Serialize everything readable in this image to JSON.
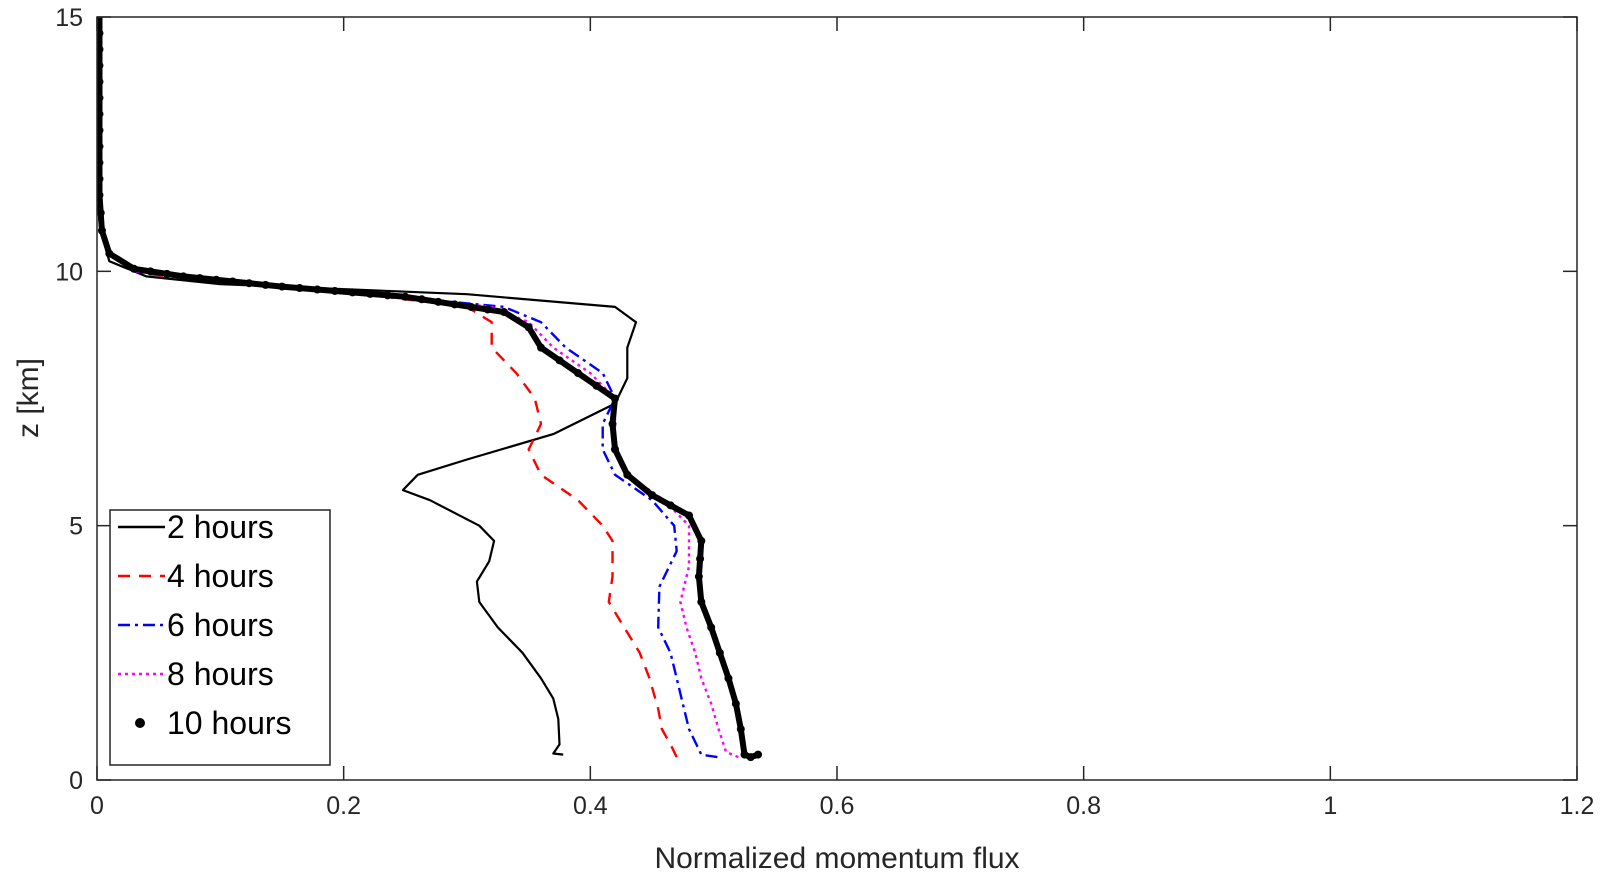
{
  "chart_data": {
    "type": "line",
    "title": "",
    "xlabel": "Normalized momentum flux",
    "ylabel": "z [km]",
    "xlim": [
      0,
      1.2
    ],
    "ylim": [
      0,
      15
    ],
    "xticks": [
      0,
      0.2,
      0.4,
      0.6,
      0.8,
      1,
      1.2
    ],
    "xtick_labels": [
      "0",
      "0.2",
      "0.4",
      "0.6",
      "0.8",
      "1",
      "1.2"
    ],
    "yticks": [
      0,
      5,
      10,
      15
    ],
    "ytick_labels": [
      "0",
      "5",
      "10",
      "15"
    ],
    "grid": false,
    "legend_position": "bottom-left",
    "series": [
      {
        "name": "2 hours",
        "color": "#000000",
        "style": "solid",
        "points": [
          [
            0.378,
            0.5
          ],
          [
            0.37,
            0.52
          ],
          [
            0.375,
            0.7
          ],
          [
            0.374,
            1.2
          ],
          [
            0.37,
            1.6
          ],
          [
            0.36,
            2.0
          ],
          [
            0.345,
            2.5
          ],
          [
            0.325,
            3.0
          ],
          [
            0.31,
            3.5
          ],
          [
            0.308,
            3.9
          ],
          [
            0.318,
            4.3
          ],
          [
            0.322,
            4.7
          ],
          [
            0.31,
            5.0
          ],
          [
            0.27,
            5.5
          ],
          [
            0.248,
            5.7
          ],
          [
            0.26,
            6.0
          ],
          [
            0.3,
            6.3
          ],
          [
            0.37,
            6.8
          ],
          [
            0.42,
            7.4
          ],
          [
            0.43,
            7.9
          ],
          [
            0.43,
            8.5
          ],
          [
            0.437,
            9.0
          ],
          [
            0.42,
            9.3
          ],
          [
            0.3,
            9.55
          ],
          [
            0.1,
            9.75
          ],
          [
            0.04,
            9.9
          ],
          [
            0.01,
            10.2
          ],
          [
            0.003,
            10.8
          ],
          [
            0.002,
            12
          ],
          [
            0.002,
            15
          ]
        ]
      },
      {
        "name": "4 hours",
        "color": "#ff0000",
        "style": "dashed",
        "points": [
          [
            0.47,
            0.45
          ],
          [
            0.465,
            0.7
          ],
          [
            0.458,
            1.0
          ],
          [
            0.455,
            1.4
          ],
          [
            0.448,
            2.0
          ],
          [
            0.44,
            2.5
          ],
          [
            0.43,
            2.9
          ],
          [
            0.415,
            3.5
          ],
          [
            0.418,
            4.0
          ],
          [
            0.418,
            4.7
          ],
          [
            0.41,
            5.0
          ],
          [
            0.39,
            5.5
          ],
          [
            0.36,
            6.0
          ],
          [
            0.35,
            6.5
          ],
          [
            0.36,
            7.0
          ],
          [
            0.355,
            7.5
          ],
          [
            0.34,
            8.0
          ],
          [
            0.32,
            8.5
          ],
          [
            0.32,
            9.0
          ],
          [
            0.3,
            9.3
          ],
          [
            0.2,
            9.6
          ],
          [
            0.1,
            9.8
          ],
          [
            0.04,
            9.95
          ],
          [
            0.01,
            10.3
          ],
          [
            0.003,
            11
          ],
          [
            0.002,
            15
          ]
        ]
      },
      {
        "name": "6 hours",
        "color": "#0000ff",
        "style": "dashdot",
        "points": [
          [
            0.503,
            0.45
          ],
          [
            0.49,
            0.5
          ],
          [
            0.486,
            0.7
          ],
          [
            0.48,
            1.0
          ],
          [
            0.475,
            1.5
          ],
          [
            0.47,
            2.0
          ],
          [
            0.465,
            2.5
          ],
          [
            0.455,
            3.0
          ],
          [
            0.456,
            3.8
          ],
          [
            0.47,
            4.5
          ],
          [
            0.468,
            5.0
          ],
          [
            0.45,
            5.5
          ],
          [
            0.42,
            6.0
          ],
          [
            0.41,
            6.5
          ],
          [
            0.41,
            7.0
          ],
          [
            0.42,
            7.5
          ],
          [
            0.41,
            8.0
          ],
          [
            0.38,
            8.5
          ],
          [
            0.36,
            9.0
          ],
          [
            0.33,
            9.3
          ],
          [
            0.2,
            9.6
          ],
          [
            0.08,
            9.85
          ],
          [
            0.03,
            10.0
          ],
          [
            0.008,
            10.4
          ],
          [
            0.002,
            11
          ],
          [
            0.002,
            15
          ]
        ]
      },
      {
        "name": "8 hours",
        "color": "#ff00ff",
        "style": "dotted",
        "points": [
          [
            0.52,
            0.45
          ],
          [
            0.51,
            0.55
          ],
          [
            0.504,
            1.0
          ],
          [
            0.498,
            1.5
          ],
          [
            0.49,
            2.0
          ],
          [
            0.485,
            2.5
          ],
          [
            0.478,
            3.0
          ],
          [
            0.473,
            3.5
          ],
          [
            0.48,
            4.2
          ],
          [
            0.48,
            5.0
          ],
          [
            0.46,
            5.5
          ],
          [
            0.43,
            6.0
          ],
          [
            0.42,
            6.5
          ],
          [
            0.42,
            7.0
          ],
          [
            0.42,
            7.5
          ],
          [
            0.4,
            8.0
          ],
          [
            0.37,
            8.5
          ],
          [
            0.35,
            9.0
          ],
          [
            0.32,
            9.3
          ],
          [
            0.2,
            9.6
          ],
          [
            0.08,
            9.85
          ],
          [
            0.03,
            10.0
          ],
          [
            0.008,
            10.4
          ],
          [
            0.002,
            11
          ],
          [
            0.002,
            15
          ]
        ]
      },
      {
        "name": "10 hours",
        "color": "#000000",
        "style": "dots",
        "points": [
          [
            0.536,
            0.5
          ],
          [
            0.53,
            0.45
          ],
          [
            0.525,
            0.5
          ],
          [
            0.522,
            1.0
          ],
          [
            0.518,
            1.5
          ],
          [
            0.512,
            2.0
          ],
          [
            0.505,
            2.5
          ],
          [
            0.498,
            3.0
          ],
          [
            0.49,
            3.5
          ],
          [
            0.488,
            4.0
          ],
          [
            0.49,
            4.7
          ],
          [
            0.48,
            5.2
          ],
          [
            0.45,
            5.6
          ],
          [
            0.43,
            6.0
          ],
          [
            0.42,
            6.5
          ],
          [
            0.418,
            7.0
          ],
          [
            0.42,
            7.5
          ],
          [
            0.39,
            8.0
          ],
          [
            0.36,
            8.5
          ],
          [
            0.35,
            8.9
          ],
          [
            0.33,
            9.2
          ],
          [
            0.25,
            9.5
          ],
          [
            0.15,
            9.7
          ],
          [
            0.07,
            9.9
          ],
          [
            0.03,
            10.05
          ],
          [
            0.01,
            10.35
          ],
          [
            0.004,
            10.8
          ],
          [
            0.002,
            11.5
          ],
          [
            0.002,
            15
          ]
        ]
      }
    ]
  }
}
